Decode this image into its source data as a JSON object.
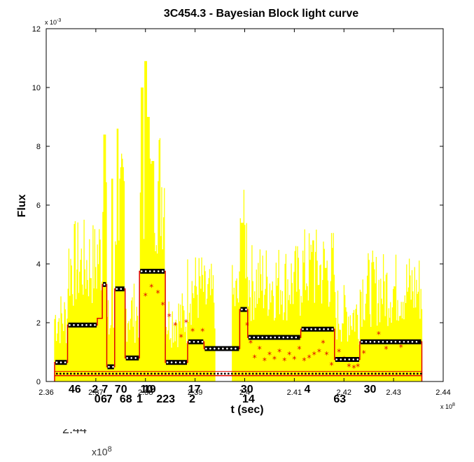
{
  "chart_data": {
    "type": "line",
    "title": "3C454.3 - Bayesian Block light curve",
    "xlabel": "t (sec)",
    "ylabel": "Flux",
    "x_multiplier": "x 10",
    "x_multiplier_exp": "8",
    "y_multiplier": "x 10",
    "y_multiplier_exp": "-3",
    "xlim": [
      2.36,
      2.44
    ],
    "ylim": [
      0,
      12
    ],
    "x_ticks": [
      "2.36",
      "2.37",
      "2.38",
      "2.39",
      "2.4",
      "2.41",
      "2.42",
      "2.43",
      "2.44"
    ],
    "y_ticks": [
      "0",
      "2",
      "4",
      "6",
      "8",
      "10",
      "12"
    ],
    "grid": false,
    "colors": {
      "yellow": "#ffff00",
      "red": "#e00000",
      "black": "#000000"
    },
    "blocks": [
      {
        "x0": 2.3617,
        "x1": 2.3643,
        "y": 0.65
      },
      {
        "x0": 2.3643,
        "x1": 2.3703,
        "y": 1.92
      },
      {
        "x0": 2.3703,
        "x1": 2.3713,
        "y": 2.15
      },
      {
        "x0": 2.3713,
        "x1": 2.3722,
        "y": 3.3
      },
      {
        "x0": 2.3722,
        "x1": 2.3738,
        "y": 0.5
      },
      {
        "x0": 2.3738,
        "x1": 2.3759,
        "y": 3.15
      },
      {
        "x0": 2.3759,
        "x1": 2.3788,
        "y": 0.8
      },
      {
        "x0": 2.3788,
        "x1": 2.384,
        "y": 3.75
      },
      {
        "x0": 2.384,
        "x1": 2.3885,
        "y": 0.65
      },
      {
        "x0": 2.3885,
        "x1": 2.3918,
        "y": 1.35
      },
      {
        "x0": 2.3918,
        "x1": 2.399,
        "y": 1.12
      },
      {
        "x0": 2.399,
        "x1": 2.4006,
        "y": 2.45
      },
      {
        "x0": 2.4006,
        "x1": 2.4113,
        "y": 1.5
      },
      {
        "x0": 2.4113,
        "x1": 2.4181,
        "y": 1.78
      },
      {
        "x0": 2.4181,
        "x1": 2.4232,
        "y": 0.75
      },
      {
        "x0": 2.4232,
        "x1": 2.4357,
        "y": 1.35
      }
    ],
    "baseline": 0.2,
    "markers_black": [
      {
        "x0": 2.3617,
        "x1": 2.3643,
        "y": 0.65
      },
      {
        "x0": 2.3643,
        "x1": 2.3703,
        "y": 1.92
      },
      {
        "x0": 2.3713,
        "x1": 2.3722,
        "y": 3.3
      },
      {
        "x0": 2.3722,
        "x1": 2.3738,
        "y": 0.5
      },
      {
        "x0": 2.3738,
        "x1": 2.3759,
        "y": 3.15
      },
      {
        "x0": 2.3759,
        "x1": 2.3788,
        "y": 0.8
      },
      {
        "x0": 2.3788,
        "x1": 2.384,
        "y": 3.75
      },
      {
        "x0": 2.384,
        "x1": 2.3885,
        "y": 0.65
      },
      {
        "x0": 2.3885,
        "x1": 2.3918,
        "y": 1.35
      },
      {
        "x0": 2.3918,
        "x1": 2.399,
        "y": 1.12
      },
      {
        "x0": 2.399,
        "x1": 2.4006,
        "y": 2.45
      },
      {
        "x0": 2.4006,
        "x1": 2.4113,
        "y": 1.5
      },
      {
        "x0": 2.4113,
        "x1": 2.4181,
        "y": 1.78
      },
      {
        "x0": 2.4181,
        "x1": 2.4232,
        "y": 0.75
      },
      {
        "x0": 2.4232,
        "x1": 2.4357,
        "y": 1.35
      }
    ],
    "red_points": [
      {
        "x": 2.38,
        "y": 2.9
      },
      {
        "x": 2.3812,
        "y": 3.2
      },
      {
        "x": 2.3825,
        "y": 3.0
      },
      {
        "x": 2.3835,
        "y": 2.6
      },
      {
        "x": 2.3848,
        "y": 2.2
      },
      {
        "x": 2.386,
        "y": 1.9
      },
      {
        "x": 2.3872,
        "y": 1.5
      },
      {
        "x": 2.3882,
        "y": 2.0
      },
      {
        "x": 2.3895,
        "y": 1.7
      },
      {
        "x": 2.3908,
        "y": 1.3
      },
      {
        "x": 2.3915,
        "y": 1.7
      },
      {
        "x": 2.4005,
        "y": 1.9
      },
      {
        "x": 2.4012,
        "y": 1.3
      },
      {
        "x": 2.402,
        "y": 0.8
      },
      {
        "x": 2.403,
        "y": 1.1
      },
      {
        "x": 2.404,
        "y": 0.7
      },
      {
        "x": 2.405,
        "y": 0.9
      },
      {
        "x": 2.406,
        "y": 0.75
      },
      {
        "x": 2.407,
        "y": 1.0
      },
      {
        "x": 2.408,
        "y": 0.7
      },
      {
        "x": 2.409,
        "y": 0.9
      },
      {
        "x": 2.41,
        "y": 0.75
      },
      {
        "x": 2.411,
        "y": 1.1
      },
      {
        "x": 2.412,
        "y": 0.7
      },
      {
        "x": 2.413,
        "y": 0.8
      },
      {
        "x": 2.414,
        "y": 0.9
      },
      {
        "x": 2.415,
        "y": 1.0
      },
      {
        "x": 2.4158,
        "y": 1.3
      },
      {
        "x": 2.4165,
        "y": 0.9
      },
      {
        "x": 2.4175,
        "y": 0.55
      },
      {
        "x": 2.419,
        "y": 1.0
      },
      {
        "x": 2.42,
        "y": 0.75
      },
      {
        "x": 2.421,
        "y": 0.5
      },
      {
        "x": 2.422,
        "y": 0.45
      },
      {
        "x": 2.4228,
        "y": 0.5
      },
      {
        "x": 2.424,
        "y": 0.95
      },
      {
        "x": 2.4255,
        "y": 1.3
      },
      {
        "x": 2.427,
        "y": 1.6
      },
      {
        "x": 2.4285,
        "y": 1.1
      },
      {
        "x": 2.43,
        "y": 1.3
      },
      {
        "x": 2.4315,
        "y": 1.15
      }
    ],
    "segments": [
      {
        "x0": 2.3617,
        "x1": 2.3885
      },
      {
        "x0": 2.3885,
        "x1": 2.394
      },
      {
        "x0": 2.3975,
        "x1": 2.4357
      }
    ],
    "block_labels": [
      {
        "text": "46",
        "x": 2.3645,
        "row": 1
      },
      {
        "text": "2",
        "x": 2.3692,
        "row": 1
      },
      {
        "text": "7",
        "x": 2.3712,
        "row": 1
      },
      {
        "text": "70",
        "x": 2.3738,
        "row": 1
      },
      {
        "text": "10",
        "x": 2.379,
        "row": 1
      },
      {
        "text": "19",
        "x": 2.3796,
        "row": 1
      },
      {
        "text": "17",
        "x": 2.3886,
        "row": 1
      },
      {
        "text": "30",
        "x": 2.3992,
        "row": 1
      },
      {
        "text": "4",
        "x": 2.412,
        "row": 1
      },
      {
        "text": "30",
        "x": 2.424,
        "row": 1
      },
      {
        "text": "0",
        "x": 2.3697,
        "row": 2
      },
      {
        "text": "6",
        "x": 2.371,
        "row": 2
      },
      {
        "text": "7",
        "x": 2.3721,
        "row": 2
      },
      {
        "text": "68",
        "x": 2.3748,
        "row": 2
      },
      {
        "text": "1",
        "x": 2.3782,
        "row": 2
      },
      {
        "text": "223",
        "x": 2.3822,
        "row": 2
      },
      {
        "text": "2",
        "x": 2.3888,
        "row": 2
      },
      {
        "text": "14",
        "x": 2.3995,
        "row": 2
      },
      {
        "text": "63",
        "x": 2.4179,
        "row": 2
      }
    ],
    "footer_partial": "2.44",
    "footer_multiplier": "x10",
    "footer_exp": "8"
  }
}
